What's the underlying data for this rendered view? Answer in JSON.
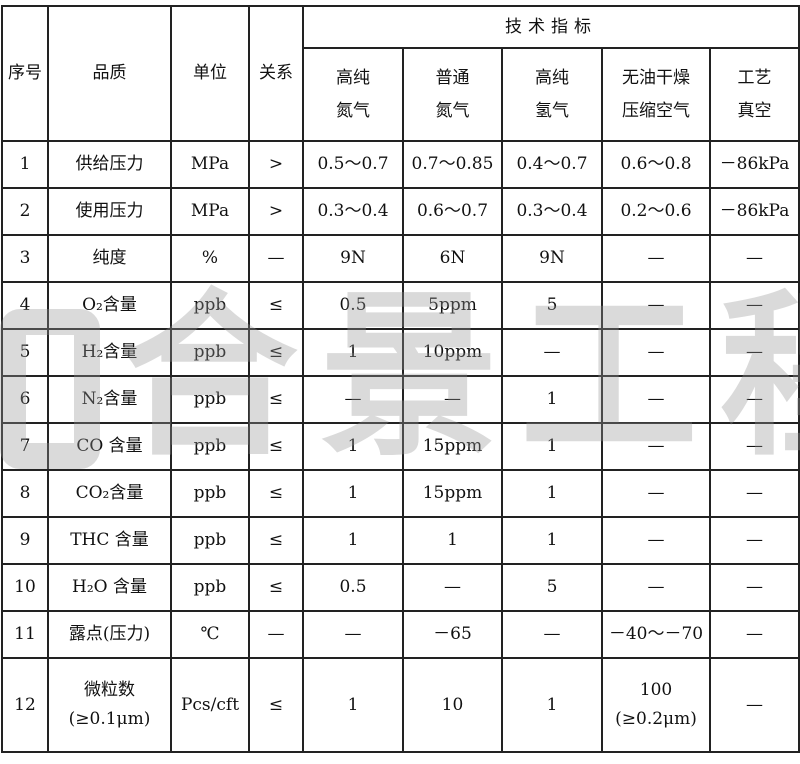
{
  "table": {
    "header": {
      "seq": "序号",
      "item": "品质",
      "unit": "单位",
      "relation": "关系",
      "group": "技术指标",
      "columns": [
        [
          "高纯",
          "氮气"
        ],
        [
          "普通",
          "氮气"
        ],
        [
          "高纯",
          "氢气"
        ],
        [
          "无油干燥",
          "压缩空气"
        ],
        [
          "工艺",
          "真空"
        ]
      ]
    },
    "rows": [
      [
        "1",
        "供给压力",
        "MPa",
        ">",
        "0.5～0.7",
        "0.7～0.85",
        "0.4～0.7",
        "0.6～0.8",
        "－86kPa"
      ],
      [
        "2",
        "使用压力",
        "MPa",
        ">",
        "0.3～0.4",
        "0.6～0.7",
        "0.3～0.4",
        "0.2～0.6",
        "－86kPa"
      ],
      [
        "3",
        "纯度",
        "%",
        "—",
        "9N",
        "6N",
        "9N",
        "—",
        "—"
      ],
      [
        "4",
        "O₂含量",
        "ppb",
        "≤",
        "0.5",
        "5ppm",
        "5",
        "—",
        "—"
      ],
      [
        "5",
        "H₂含量",
        "ppb",
        "≤",
        "1",
        "10ppm",
        "—",
        "—",
        "—"
      ],
      [
        "6",
        "N₂含量",
        "ppb",
        "≤",
        "—",
        "—",
        "1",
        "—",
        "—"
      ],
      [
        "7",
        "CO 含量",
        "ppb",
        "≤",
        "1",
        "15ppm",
        "1",
        "—",
        "—"
      ],
      [
        "8",
        "CO₂含量",
        "ppb",
        "≤",
        "1",
        "15ppm",
        "1",
        "—",
        "—"
      ],
      [
        "9",
        "THC 含量",
        "ppb",
        "≤",
        "1",
        "1",
        "1",
        "—",
        "—"
      ],
      [
        "10",
        "H₂O 含量",
        "ppb",
        "≤",
        "0.5",
        "—",
        "5",
        "—",
        "—"
      ],
      [
        "11",
        "露点(压力)",
        "℃",
        "—",
        "—",
        "－65",
        "—",
        "－40～－70",
        "—"
      ]
    ],
    "last_row": {
      "seq": "12",
      "item": [
        "微粒数",
        "(≥0.1μm)"
      ],
      "unit": "Pcs/cft",
      "relation": "≤",
      "values": [
        "1",
        "10",
        "1"
      ],
      "air": [
        "100",
        "(≥0.2μm)"
      ],
      "vacuum": "—"
    }
  },
  "watermark": "合景工程"
}
